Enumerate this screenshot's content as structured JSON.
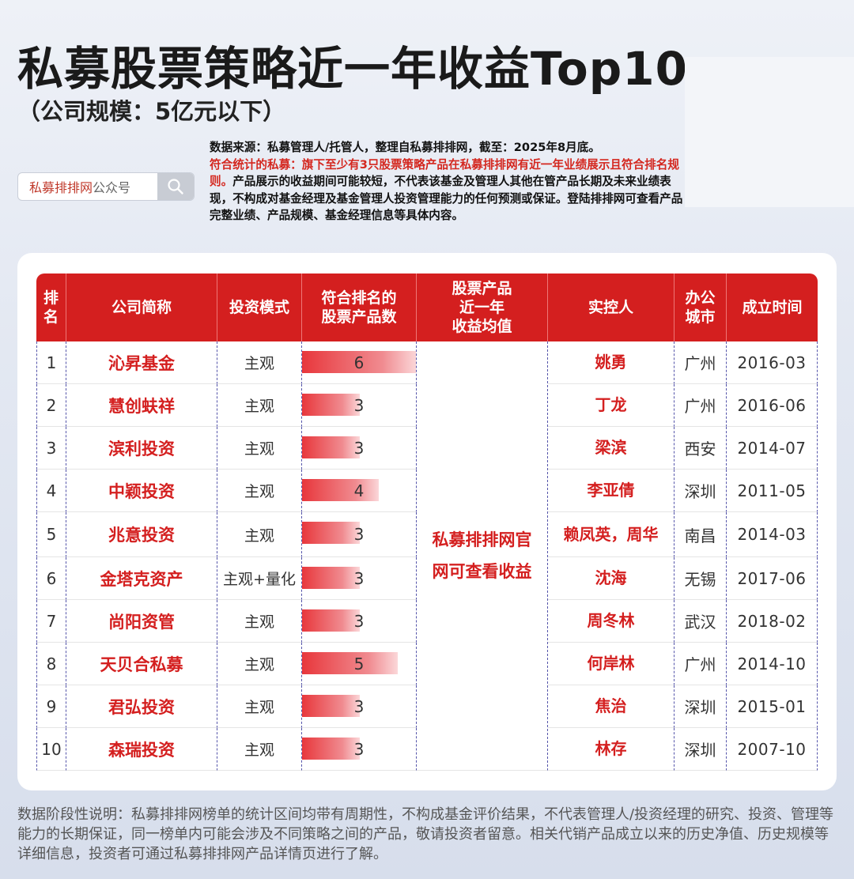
{
  "title": "私募股票策略近一年收益Top10",
  "subtitle": "（公司规模：5亿元以下）",
  "search": {
    "placeholder_red": "私募排排网",
    "placeholder_gray": "公众号",
    "icon": "search-icon"
  },
  "source": {
    "line1": "数据来源：私募管理人/托管人，整理自私募排排网，截至：2025年8月底。",
    "red": "符合统计的私募：旗下至少有3只股票策略产品在私募排排网有近一年业绩展示且符合排名规则。",
    "rest": "产品展示的收益期间可能较短，不代表该基金及管理人其他在管产品长期及未来业绩表现，不构成对基金经理及基金管理人投资管理能力的任何预测或保证。登陆排排网可查看产品完整业绩、产品规模、基金经理信息等具体内容。"
  },
  "table": {
    "headers": [
      "排名",
      "公司简称",
      "投资模式",
      "符合排名的股票产品数",
      "股票产品近一年收益均值",
      "实控人",
      "办公城市",
      "成立时间"
    ],
    "header_lines": {
      "rank": [
        "排",
        "名"
      ],
      "products": [
        "符合排名的",
        "股票产品数"
      ],
      "return": [
        "股票产品",
        "近一年",
        "收益均值"
      ],
      "city": [
        "办公",
        "城市"
      ]
    },
    "merged_note_lines": [
      "私募排排网官",
      "网可查看收益"
    ],
    "bar_max": 6,
    "rows": [
      {
        "rank": "1",
        "company": "沁昇基金",
        "mode": "主观",
        "count": 6,
        "count_label": "6",
        "person": "姚勇",
        "city": "广州",
        "date": "2016-03"
      },
      {
        "rank": "2",
        "company": "慧创蚨祥",
        "mode": "主观",
        "count": 3,
        "count_label": "3",
        "person": "丁龙",
        "city": "广州",
        "date": "2016-06"
      },
      {
        "rank": "3",
        "company": "滨利投资",
        "mode": "主观",
        "count": 3,
        "count_label": "3",
        "person": "梁滨",
        "city": "西安",
        "date": "2014-07"
      },
      {
        "rank": "4",
        "company": "中颖投资",
        "mode": "主观",
        "count": 4,
        "count_label": "4",
        "person": "李亚倩",
        "city": "深圳",
        "date": "2011-05"
      },
      {
        "rank": "5",
        "company": "兆意投资",
        "mode": "主观",
        "count": 3,
        "count_label": "3",
        "person": "赖凤英，周华",
        "city": "南昌",
        "date": "2014-03"
      },
      {
        "rank": "6",
        "company": "金塔克资产",
        "mode": "主观+量化",
        "count": 3,
        "count_label": "3",
        "person": "沈海",
        "city": "无锡",
        "date": "2017-06"
      },
      {
        "rank": "7",
        "company": "尚阳资管",
        "mode": "主观",
        "count": 3,
        "count_label": "3",
        "person": "周冬林",
        "city": "武汉",
        "date": "2018-02"
      },
      {
        "rank": "8",
        "company": "天贝合私募",
        "mode": "主观",
        "count": 5,
        "count_label": "5",
        "person": "何岸林",
        "city": "广州",
        "date": "2014-10"
      },
      {
        "rank": "9",
        "company": "君弘投资",
        "mode": "主观",
        "count": 3,
        "count_label": "3",
        "person": "焦治",
        "city": "深圳",
        "date": "2015-01"
      },
      {
        "rank": "10",
        "company": "森瑞投资",
        "mode": "主观",
        "count": 3,
        "count_label": "3",
        "person": "林存",
        "city": "深圳",
        "date": "2007-10"
      }
    ]
  },
  "footnote": "数据阶段性说明：私募排排网榜单的统计区间均带有周期性，不构成基金评价结果，不代表管理人/投资经理的研究、投资、管理等能力的长期保证，同一榜单内可能会涉及不同策略之间的产品，敬请投资者留意。相关代销产品成立以来的历史净值、历史规模等详细信息，投资者可通过私募排排网产品详情页进行了解。"
}
